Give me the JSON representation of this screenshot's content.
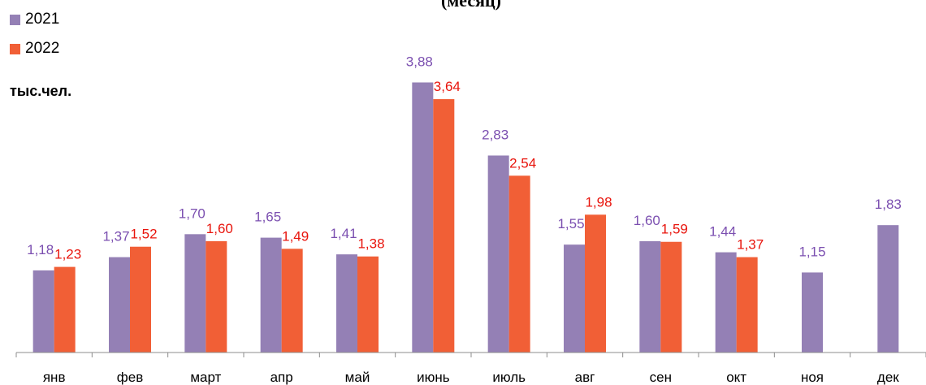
{
  "chart_data": {
    "type": "bar",
    "title": "(месяц)",
    "ylabel": "тыс.чел.",
    "categories": [
      "янв",
      "фев",
      "март",
      "апр",
      "май",
      "июнь",
      "июль",
      "авг",
      "сен",
      "окт",
      "ноя",
      "дек"
    ],
    "series": [
      {
        "name": "2021",
        "color": "#9480b5",
        "label_color": "#7b4fb0",
        "values": [
          1.18,
          1.37,
          1.7,
          1.65,
          1.41,
          3.88,
          2.83,
          1.55,
          1.6,
          1.44,
          1.15,
          1.83
        ],
        "labels": [
          "1,18",
          "1,37",
          "1,70",
          "1,65",
          "1,41",
          "3,88",
          "2,83",
          "1,55",
          "1,60",
          "1,44",
          "1,15",
          "1,83"
        ]
      },
      {
        "name": "2022",
        "color": "#f15f36",
        "label_color": "#e8140c",
        "values": [
          1.23,
          1.52,
          1.6,
          1.49,
          1.38,
          3.64,
          2.54,
          1.98,
          1.59,
          1.37,
          null,
          null
        ],
        "labels": [
          "1,23",
          "1,52",
          "1,60",
          "1,49",
          "1,38",
          "3,64",
          "2,54",
          "1,98",
          "1,59",
          "1,37",
          "",
          ""
        ]
      }
    ],
    "ylim": [
      0,
      4.2
    ],
    "grid": false,
    "legend": "top-left"
  }
}
